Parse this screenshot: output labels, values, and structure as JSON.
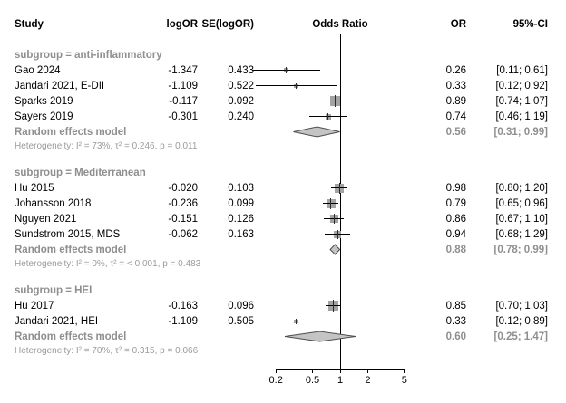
{
  "columns": {
    "study": "Study",
    "logor": "logOR",
    "se": "SE(logOR)",
    "plot": "Odds Ratio",
    "or": "OR",
    "ci": "95%-CI"
  },
  "chart_data": {
    "type": "forest",
    "scale": "log",
    "x_ticks": [
      0.2,
      0.5,
      1,
      2,
      5
    ],
    "x_tick_labels": [
      "0.2",
      "0.5",
      "1",
      "2",
      "5"
    ],
    "ref_line": 1,
    "colors": {
      "square": "#a3a3a3",
      "diamond_fill": "#c4c4c4",
      "diamond_stroke": "#4d4d4d",
      "subgroup_text": "#8f8f8f"
    },
    "groups": [
      {
        "title": "subgroup = anti-inflammatory",
        "studies": [
          {
            "name": "Gao 2024",
            "logor": "-1.347",
            "se": "0.433",
            "or": "0.26",
            "ci": "[0.11; 0.61]",
            "point": 0.26,
            "lo": 0.11,
            "hi": 0.61
          },
          {
            "name": "Jandari 2021, E-DII",
            "logor": "-1.109",
            "se": "0.522",
            "or": "0.33",
            "ci": "[0.12; 0.92]",
            "point": 0.33,
            "lo": 0.12,
            "hi": 0.92
          },
          {
            "name": "Sparks 2019",
            "logor": "-0.117",
            "se": "0.092",
            "or": "0.89",
            "ci": "[0.74; 1.07]",
            "point": 0.89,
            "lo": 0.74,
            "hi": 1.07
          },
          {
            "name": "Sayers 2019",
            "logor": "-0.301",
            "se": "0.240",
            "or": "0.74",
            "ci": "[0.46; 1.19]",
            "point": 0.74,
            "lo": 0.46,
            "hi": 1.19
          }
        ],
        "summary": {
          "label": "Random effects model",
          "or": "0.56",
          "ci": "[0.31; 0.99]",
          "point": 0.56,
          "lo": 0.31,
          "hi": 0.99
        },
        "heterogeneity": "Heterogeneity: I² = 73%, τ² = 0.246, p = 0.011"
      },
      {
        "title": "subgroup = Mediterranean",
        "studies": [
          {
            "name": "Hu 2015",
            "logor": "-0.020",
            "se": "0.103",
            "or": "0.98",
            "ci": "[0.80; 1.20]",
            "point": 0.98,
            "lo": 0.8,
            "hi": 1.2
          },
          {
            "name": "Johansson 2018",
            "logor": "-0.236",
            "se": "0.099",
            "or": "0.79",
            "ci": "[0.65; 0.96]",
            "point": 0.79,
            "lo": 0.65,
            "hi": 0.96
          },
          {
            "name": "Nguyen 2021",
            "logor": "-0.151",
            "se": "0.126",
            "or": "0.86",
            "ci": "[0.67; 1.10]",
            "point": 0.86,
            "lo": 0.67,
            "hi": 1.1
          },
          {
            "name": "Sundstrom 2015, MDS",
            "logor": "-0.062",
            "se": "0.163",
            "or": "0.94",
            "ci": "[0.68; 1.29]",
            "point": 0.94,
            "lo": 0.68,
            "hi": 1.29
          }
        ],
        "summary": {
          "label": "Random effects model",
          "or": "0.88",
          "ci": "[0.78; 0.99]",
          "point": 0.88,
          "lo": 0.78,
          "hi": 0.99
        },
        "heterogeneity": "Heterogeneity: I² = 0%, τ² = < 0.001, p = 0.483"
      },
      {
        "title": "subgroup = HEI",
        "studies": [
          {
            "name": "Hu 2017",
            "logor": "-0.163",
            "se": "0.096",
            "or": "0.85",
            "ci": "[0.70; 1.03]",
            "point": 0.85,
            "lo": 0.7,
            "hi": 1.03
          },
          {
            "name": "Jandari 2021, HEI",
            "logor": "-1.109",
            "se": "0.505",
            "or": "0.33",
            "ci": "[0.12; 0.89]",
            "point": 0.33,
            "lo": 0.12,
            "hi": 0.89
          }
        ],
        "summary": {
          "label": "Random effects model",
          "or": "0.60",
          "ci": "[0.25; 1.47]",
          "point": 0.6,
          "lo": 0.25,
          "hi": 1.47
        },
        "heterogeneity": "Heterogeneity: I² = 70%, τ² = 0.315, p = 0.066"
      }
    ]
  }
}
